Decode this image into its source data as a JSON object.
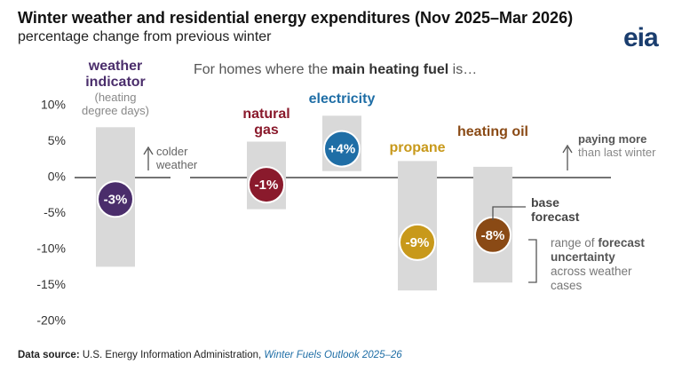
{
  "title": "Winter weather and residential energy expenditures (Nov 2025–Mar 2026)",
  "subtitle": "percentage change from previous winter",
  "logo": "eia",
  "chart_data": {
    "type": "range",
    "header_note": {
      "before": "For homes where the",
      "bold": "main heating fuel",
      "after": "is…"
    },
    "categories": [
      "weather indicator",
      "natural gas",
      "electricity",
      "propane",
      "heating oil"
    ],
    "category_note": "(heating degree days)",
    "colors": [
      "#4a2d6b",
      "#8a1a2c",
      "#1f6ea6",
      "#c8991b",
      "#8a4a15"
    ],
    "range_color": "#d9d9d9",
    "series": [
      {
        "name": "base forecast",
        "values": [
          -3,
          -1,
          4,
          -9,
          -8
        ],
        "value_labels": [
          "-3%",
          "-1%",
          "+4%",
          "-9%",
          "-8%"
        ]
      }
    ],
    "low": [
      -12.4,
      -4.4,
      0.9,
      -15.7,
      -14.6
    ],
    "high": [
      7,
      5,
      8.6,
      2.3,
      1.5
    ],
    "ylim": [
      -20,
      10
    ],
    "yticks": [
      {
        "value": 10,
        "label": "10%"
      },
      {
        "value": 5,
        "label": "5%"
      },
      {
        "value": 0,
        "label": "0%"
      },
      {
        "value": -5,
        "label": "-5%"
      },
      {
        "value": -10,
        "label": "-10%"
      },
      {
        "value": -15,
        "label": "-15%"
      },
      {
        "value": -20,
        "label": "-20%"
      }
    ],
    "annotations": {
      "colder": "colder weather",
      "paying_bold": "paying more",
      "paying_rest": "than last winter",
      "range_before": "range of",
      "range_bold": "forecast uncertainty",
      "range_after": "across weather cases"
    }
  },
  "footer": {
    "label": "Data source:",
    "source": "U.S. Energy Information Administration,",
    "publication": "Winter Fuels Outlook 2025–26"
  }
}
